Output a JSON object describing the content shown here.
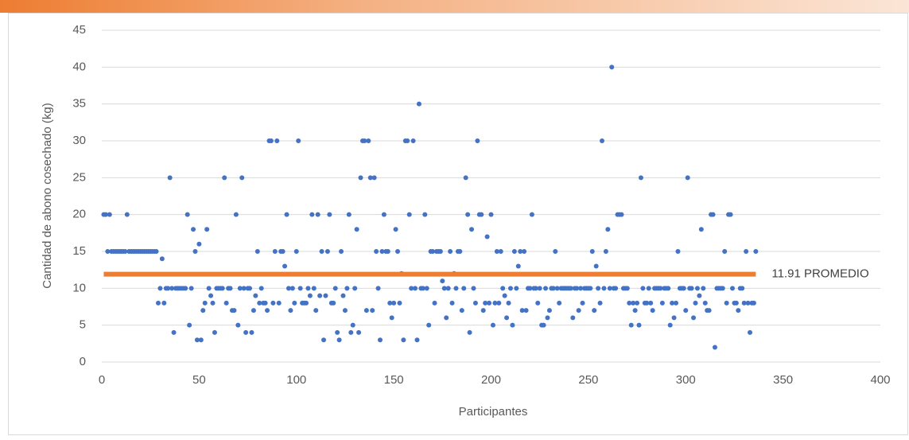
{
  "chart_data": {
    "type": "scatter",
    "x_label": "Participantes",
    "y_label": "Cantidad de abono cosechado (kg)",
    "color": "#4472c4",
    "mean_line": {
      "value": 11.91,
      "label": "11.91 PROMEDIO",
      "color": "#ed7d31"
    },
    "xlim": [
      0,
      400
    ],
    "xticks": [
      0,
      50,
      100,
      150,
      200,
      250,
      300,
      350,
      400
    ],
    "ylim": [
      0,
      45
    ],
    "yticks": [
      0,
      5,
      10,
      15,
      20,
      25,
      30,
      35,
      40,
      45
    ],
    "grid": true,
    "x": [
      1,
      2,
      3,
      4,
      5,
      6,
      7,
      8,
      9,
      10,
      11,
      12,
      13,
      14,
      15,
      16,
      17,
      18,
      19,
      20,
      21,
      22,
      23,
      24,
      25,
      26,
      27,
      28,
      29,
      30,
      31,
      32,
      33,
      34,
      35,
      36,
      37,
      38,
      39,
      40,
      41,
      42,
      43,
      44,
      45,
      46,
      47,
      48,
      49,
      50,
      51,
      52,
      53,
      54,
      55,
      56,
      57,
      58,
      59,
      60,
      61,
      62,
      63,
      64,
      65,
      66,
      67,
      68,
      69,
      70,
      71,
      72,
      73,
      74,
      75,
      76,
      77,
      78,
      79,
      80,
      81,
      82,
      83,
      84,
      85,
      86,
      87,
      88,
      89,
      90,
      91,
      92,
      93,
      94,
      95,
      96,
      97,
      98,
      99,
      100,
      101,
      102,
      103,
      104,
      105,
      106,
      107,
      108,
      109,
      110,
      111,
      112,
      113,
      114,
      115,
      116,
      117,
      118,
      119,
      120,
      121,
      122,
      123,
      124,
      125,
      126,
      127,
      128,
      129,
      130,
      131,
      132,
      133,
      134,
      135,
      136,
      137,
      138,
      139,
      140,
      141,
      142,
      143,
      144,
      145,
      146,
      147,
      148,
      149,
      150,
      151,
      152,
      153,
      154,
      155,
      156,
      157,
      158,
      159,
      160,
      161,
      162,
      163,
      164,
      165,
      166,
      167,
      168,
      169,
      170,
      171,
      172,
      173,
      174,
      175,
      176,
      177,
      178,
      179,
      180,
      181,
      182,
      183,
      184,
      185,
      186,
      187,
      188,
      189,
      190,
      191,
      192,
      193,
      194,
      195,
      196,
      197,
      198,
      199,
      200,
      201,
      202,
      203,
      204,
      205,
      206,
      207,
      208,
      209,
      210,
      211,
      212,
      213,
      214,
      215,
      216,
      217,
      218,
      219,
      220,
      221,
      222,
      223,
      224,
      225,
      226,
      227,
      228,
      229,
      230,
      231,
      232,
      233,
      234,
      235,
      236,
      237,
      238,
      239,
      240,
      241,
      242,
      243,
      244,
      245,
      246,
      247,
      248,
      249,
      250,
      251,
      252,
      253,
      254,
      255,
      256,
      257,
      258,
      259,
      260,
      261,
      262,
      263,
      264,
      265,
      266,
      267,
      268,
      269,
      270,
      271,
      272,
      273,
      274,
      275,
      276,
      277,
      278,
      279,
      280,
      281,
      282,
      283,
      284,
      285,
      286,
      287,
      288,
      289,
      290,
      291,
      292,
      293,
      294,
      295,
      296,
      297,
      298,
      299,
      300,
      301,
      302,
      303,
      304,
      305,
      306,
      307,
      308,
      309,
      310,
      311,
      312,
      313,
      314,
      315,
      316,
      317,
      318,
      319,
      320,
      321,
      322,
      323,
      324,
      325,
      326,
      327,
      328,
      329,
      330,
      331,
      332,
      333,
      334,
      335,
      336
    ],
    "values": [
      20,
      20,
      15,
      20,
      15,
      15,
      15,
      15,
      15,
      15,
      15,
      15,
      20,
      15,
      15,
      15,
      15,
      15,
      15,
      15,
      15,
      15,
      15,
      15,
      15,
      15,
      15,
      15,
      8,
      10,
      14,
      8,
      10,
      10,
      25,
      10,
      4,
      10,
      10,
      10,
      10,
      10,
      10,
      20,
      5,
      10,
      18,
      15,
      3,
      16,
      3,
      7,
      8,
      18,
      10,
      9,
      8,
      4,
      10,
      10,
      10,
      10,
      25,
      8,
      10,
      10,
      7,
      7,
      20,
      5,
      10,
      25,
      10,
      4,
      10,
      10,
      4,
      7,
      9,
      15,
      8,
      10,
      8,
      8,
      7,
      30,
      30,
      8,
      15,
      30,
      8,
      15,
      15,
      13,
      20,
      10,
      7,
      10,
      8,
      15,
      30,
      10,
      8,
      8,
      8,
      10,
      9,
      20,
      10,
      7,
      20,
      9,
      15,
      3,
      9,
      15,
      20,
      8,
      8,
      10,
      4,
      3,
      15,
      9,
      7,
      10,
      20,
      4,
      5,
      10,
      18,
      4,
      25,
      30,
      30,
      7,
      30,
      25,
      7,
      25,
      15,
      10,
      3,
      15,
      20,
      15,
      15,
      8,
      6,
      8,
      18,
      15,
      8,
      12,
      3,
      30,
      30,
      20,
      10,
      30,
      10,
      3,
      35,
      10,
      10,
      20,
      10,
      5,
      15,
      15,
      8,
      15,
      15,
      15,
      11,
      10,
      6,
      10,
      15,
      8,
      12,
      10,
      15,
      15,
      7,
      10,
      25,
      20,
      4,
      18,
      10,
      8,
      30,
      20,
      20,
      7,
      8,
      17,
      8,
      20,
      5,
      8,
      15,
      8,
      15,
      10,
      9,
      6,
      8,
      10,
      5,
      15,
      10,
      13,
      15,
      7,
      15,
      7,
      10,
      10,
      20,
      10,
      10,
      8,
      10,
      5,
      5,
      10,
      6,
      7,
      10,
      10,
      15,
      10,
      8,
      10,
      10,
      10,
      10,
      10,
      10,
      6,
      10,
      10,
      7,
      10,
      8,
      10,
      10,
      10,
      10,
      15,
      7,
      13,
      10,
      8,
      30,
      10,
      15,
      18,
      10,
      40,
      10,
      10,
      20,
      20,
      20,
      10,
      10,
      10,
      8,
      5,
      8,
      7,
      8,
      5,
      25,
      10,
      8,
      8,
      10,
      8,
      7,
      10,
      10,
      10,
      10,
      8,
      10,
      10,
      10,
      5,
      8,
      6,
      8,
      15,
      10,
      10,
      10,
      7,
      25,
      10,
      10,
      6,
      8,
      10,
      9,
      18,
      10,
      8,
      7,
      7,
      20,
      20,
      2,
      10,
      10,
      10,
      10,
      15,
      8,
      20,
      20,
      10,
      8,
      8,
      7,
      10,
      10,
      8,
      15,
      8,
      4,
      8,
      8,
      15
    ]
  }
}
